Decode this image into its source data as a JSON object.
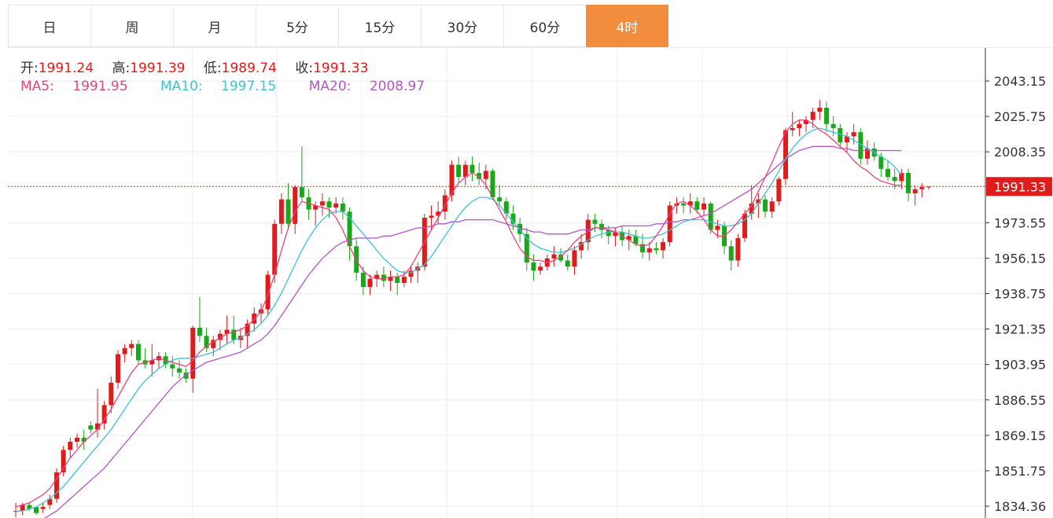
{
  "tabs": [
    {
      "label": "日",
      "active": false
    },
    {
      "label": "周",
      "active": false
    },
    {
      "label": "月",
      "active": false
    },
    {
      "label": "5分",
      "active": false
    },
    {
      "label": "15分",
      "active": false
    },
    {
      "label": "30分",
      "active": false
    },
    {
      "label": "60分",
      "active": false
    },
    {
      "label": "4时",
      "active": true
    }
  ],
  "colors": {
    "up": "#e01b1b",
    "down": "#1aa81a",
    "ma5": "#e8457d",
    "ma10": "#3cc3d4",
    "ma20": "#b455c8",
    "accent": "#f28d3e"
  },
  "info": {
    "open_label": "开:",
    "open": "1991.24",
    "high_label": "高:",
    "high": "1991.39",
    "low_label": "低:",
    "low": "1989.74",
    "close_label": "收:",
    "close": "1991.33",
    "ma5_label": "MA5:",
    "ma5": "1991.95",
    "ma10_label": "MA10:",
    "ma10": "1997.15",
    "ma20_label": "MA20:",
    "ma20": "2008.97"
  },
  "chart_data": {
    "type": "candlestick",
    "ylim": [
      1830,
      2062
    ],
    "y_ticks": [
      "2043.15",
      "2025.75",
      "2008.35",
      "1991.33",
      "1973.55",
      "1956.15",
      "1938.75",
      "1921.35",
      "1903.95",
      "1886.55",
      "1869.15",
      "1851.75",
      "1834.36"
    ],
    "current_price": "1991.33",
    "candles": [
      [
        1832,
        1836,
        1829,
        1832
      ],
      [
        1832,
        1836,
        1830,
        1835
      ],
      [
        1835,
        1836,
        1832,
        1833
      ],
      [
        1834,
        1834,
        1830,
        1831
      ],
      [
        1833,
        1836,
        1831,
        1834
      ],
      [
        1835,
        1840,
        1833,
        1838
      ],
      [
        1838,
        1853,
        1836,
        1851
      ],
      [
        1851,
        1864,
        1849,
        1862
      ],
      [
        1862,
        1868,
        1858,
        1866
      ],
      [
        1866,
        1870,
        1863,
        1868
      ],
      [
        1868,
        1872,
        1862,
        1866
      ],
      [
        1874,
        1876,
        1870,
        1872
      ],
      [
        1872,
        1892,
        1868,
        1875
      ],
      [
        1875,
        1886,
        1872,
        1884
      ],
      [
        1884,
        1898,
        1880,
        1895
      ],
      [
        1895,
        1911,
        1892,
        1909
      ],
      [
        1909,
        1914,
        1905,
        1912
      ],
      [
        1912,
        1916,
        1908,
        1914
      ],
      [
        1914,
        1916,
        1904,
        1906
      ],
      [
        1906,
        1912,
        1902,
        1904
      ],
      [
        1904,
        1914,
        1898,
        1906
      ],
      [
        1906,
        1910,
        1902,
        1908
      ],
      [
        1908,
        1910,
        1902,
        1904
      ],
      [
        1904,
        1908,
        1898,
        1902
      ],
      [
        1902,
        1906,
        1897,
        1900
      ],
      [
        1900,
        1902,
        1895,
        1897
      ],
      [
        1897,
        1923,
        1890,
        1922
      ],
      [
        1922,
        1937,
        1915,
        1918
      ],
      [
        1918,
        1922,
        1910,
        1912
      ],
      [
        1912,
        1918,
        1908,
        1916
      ],
      [
        1916,
        1921,
        1911,
        1919
      ],
      [
        1919,
        1928,
        1914,
        1921
      ],
      [
        1921,
        1928,
        1914,
        1916
      ],
      [
        1916,
        1922,
        1912,
        1918
      ],
      [
        1918,
        1926,
        1912,
        1924
      ],
      [
        1924,
        1932,
        1920,
        1929
      ],
      [
        1929,
        1934,
        1924,
        1931
      ],
      [
        1931,
        1950,
        1928,
        1948
      ],
      [
        1948,
        1975,
        1944,
        1973
      ],
      [
        1973,
        1988,
        1968,
        1985
      ],
      [
        1985,
        1993,
        1970,
        1973
      ],
      [
        1973,
        1992,
        1968,
        1991
      ],
      [
        1991,
        2011,
        1984,
        1986
      ],
      [
        1986,
        1990,
        1975,
        1980
      ],
      [
        1980,
        1984,
        1972,
        1982
      ],
      [
        1982,
        1988,
        1977,
        1984
      ],
      [
        1984,
        1986,
        1976,
        1981
      ],
      [
        1981,
        1986,
        1978,
        1983
      ],
      [
        1983,
        1986,
        1975,
        1979
      ],
      [
        1979,
        1981,
        1955,
        1962
      ],
      [
        1962,
        1966,
        1945,
        1949
      ],
      [
        1949,
        1952,
        1938,
        1942
      ],
      [
        1942,
        1948,
        1938,
        1946
      ],
      [
        1946,
        1950,
        1942,
        1948
      ],
      [
        1948,
        1952,
        1942,
        1945
      ],
      [
        1945,
        1950,
        1940,
        1947
      ],
      [
        1947,
        1949,
        1938,
        1944
      ],
      [
        1944,
        1950,
        1942,
        1947
      ],
      [
        1947,
        1952,
        1944,
        1950
      ],
      [
        1950,
        1954,
        1944,
        1952
      ],
      [
        1952,
        1978,
        1950,
        1976
      ],
      [
        1976,
        1982,
        1970,
        1977
      ],
      [
        1977,
        1984,
        1973,
        1979
      ],
      [
        1979,
        1990,
        1975,
        1987
      ],
      [
        1987,
        2004,
        1984,
        2002
      ],
      [
        2002,
        2006,
        1993,
        1996
      ],
      [
        1996,
        2004,
        1992,
        2002
      ],
      [
        2002,
        2006,
        1994,
        1998
      ],
      [
        1998,
        2003,
        1992,
        1995
      ],
      [
        1995,
        2002,
        1990,
        1999
      ],
      [
        1999,
        2000,
        1985,
        1986
      ],
      [
        1986,
        1992,
        1982,
        1984
      ],
      [
        1984,
        1986,
        1975,
        1978
      ],
      [
        1978,
        1982,
        1970,
        1973
      ],
      [
        1973,
        1976,
        1964,
        1968
      ],
      [
        1968,
        1971,
        1950,
        1954
      ],
      [
        1954,
        1958,
        1945,
        1950
      ],
      [
        1950,
        1954,
        1948,
        1952
      ],
      [
        1952,
        1958,
        1950,
        1956
      ],
      [
        1956,
        1962,
        1952,
        1958
      ],
      [
        1958,
        1961,
        1954,
        1955
      ],
      [
        1955,
        1958,
        1950,
        1952
      ],
      [
        1952,
        1962,
        1948,
        1960
      ],
      [
        1960,
        1968,
        1956,
        1964
      ],
      [
        1964,
        1978,
        1960,
        1975
      ],
      [
        1975,
        1978,
        1969,
        1973
      ],
      [
        1973,
        1975,
        1966,
        1970
      ],
      [
        1970,
        1972,
        1963,
        1967
      ],
      [
        1967,
        1971,
        1962,
        1969
      ],
      [
        1969,
        1972,
        1962,
        1965
      ],
      [
        1965,
        1970,
        1960,
        1967
      ],
      [
        1967,
        1970,
        1962,
        1963
      ],
      [
        1963,
        1968,
        1956,
        1959
      ],
      [
        1959,
        1964,
        1955,
        1961
      ],
      [
        1961,
        1964,
        1958,
        1960
      ],
      [
        1960,
        1966,
        1956,
        1964
      ],
      [
        1964,
        1984,
        1962,
        1982
      ],
      [
        1982,
        1986,
        1978,
        1983
      ],
      [
        1983,
        1986,
        1978,
        1982
      ],
      [
        1982,
        1988,
        1978,
        1984
      ],
      [
        1984,
        1986,
        1978,
        1980
      ],
      [
        1980,
        1986,
        1977,
        1983
      ],
      [
        1983,
        1984,
        1968,
        1970
      ],
      [
        1970,
        1975,
        1966,
        1972
      ],
      [
        1972,
        1974,
        1958,
        1962
      ],
      [
        1962,
        1965,
        1950,
        1955
      ],
      [
        1955,
        1968,
        1952,
        1966
      ],
      [
        1966,
        1980,
        1964,
        1978
      ],
      [
        1978,
        1992,
        1975,
        1983
      ],
      [
        1983,
        1988,
        1976,
        1985
      ],
      [
        1985,
        1987,
        1976,
        1979
      ],
      [
        1979,
        1986,
        1976,
        1984
      ],
      [
        1984,
        1996,
        1982,
        1995
      ],
      [
        1995,
        2020,
        1992,
        2019
      ],
      [
        2019,
        2028,
        2016,
        2020
      ],
      [
        2020,
        2024,
        2016,
        2022
      ],
      [
        2022,
        2026,
        2018,
        2024
      ],
      [
        2024,
        2030,
        2020,
        2028
      ],
      [
        2028,
        2034,
        2024,
        2030
      ],
      [
        2030,
        2033,
        2018,
        2022
      ],
      [
        2022,
        2026,
        2016,
        2020
      ],
      [
        2020,
        2022,
        2010,
        2013
      ],
      [
        2013,
        2018,
        2008,
        2016
      ],
      [
        2016,
        2022,
        2012,
        2018
      ],
      [
        2018,
        2020,
        2002,
        2005
      ],
      [
        2005,
        2014,
        2002,
        2010
      ],
      [
        2010,
        2013,
        2004,
        2006
      ],
      [
        2006,
        2008,
        1996,
        2000
      ],
      [
        2000,
        2004,
        1994,
        1996
      ],
      [
        1996,
        2000,
        1990,
        1994
      ],
      [
        1994,
        2000,
        1990,
        1998
      ],
      [
        1998,
        2000,
        1984,
        1988
      ],
      [
        1988,
        1992,
        1982,
        1990
      ],
      [
        1990,
        1993,
        1986,
        1991
      ],
      [
        1991.24,
        1991.39,
        1989.74,
        1991.33
      ]
    ],
    "ma5": [
      1834,
      1835,
      1836,
      1838,
      1840,
      1843,
      1848,
      1853,
      1858,
      1862,
      1866,
      1869,
      1872,
      1877,
      1882,
      1888,
      1894,
      1900,
      1904,
      1905,
      1906,
      1907,
      1906,
      1905,
      1904,
      1903,
      1906,
      1910,
      1913,
      1915,
      1917,
      1919,
      1920,
      1921,
      1923,
      1926,
      1930,
      1938,
      1948,
      1960,
      1971,
      1979,
      1984,
      1983,
      1982,
      1981,
      1980,
      1976,
      1970,
      1962,
      1955,
      1950,
      1947,
      1946,
      1946,
      1947,
      1947,
      1948,
      1952,
      1958,
      1964,
      1970,
      1976,
      1982,
      1988,
      1993,
      1996,
      1998,
      1996,
      1992,
      1986,
      1980,
      1974,
      1967,
      1961,
      1957,
      1955,
      1955,
      1954,
      1955,
      1957,
      1960,
      1964,
      1967,
      1969,
      1971,
      1971,
      1970,
      1969,
      1967,
      1965,
      1963,
      1962,
      1963,
      1967,
      1972,
      1978,
      1983,
      1984,
      1982,
      1979,
      1975,
      1970,
      1967,
      1967,
      1970,
      1974,
      1978,
      1982,
      1989,
      1996,
      2003,
      2011,
      2018,
      2022,
      2024,
      2024,
      2022,
      2019,
      2017,
      2014,
      2011,
      2008,
      2004,
      2001,
      1999,
      1996,
      1994,
      1993,
      1992,
      1991.95
    ],
    "ma10": [
      1832,
      1832,
      1833,
      1834,
      1836,
      1838,
      1841,
      1844,
      1848,
      1852,
      1856,
      1860,
      1864,
      1868,
      1872,
      1877,
      1882,
      1887,
      1892,
      1896,
      1899,
      1902,
      1904,
      1906,
      1907,
      1907,
      1907,
      1908,
      1909,
      1910,
      1912,
      1914,
      1916,
      1917,
      1919,
      1921,
      1924,
      1928,
      1933,
      1939,
      1946,
      1953,
      1960,
      1966,
      1971,
      1975,
      1978,
      1979,
      1979,
      1976,
      1972,
      1968,
      1964,
      1960,
      1956,
      1953,
      1950,
      1949,
      1949,
      1951,
      1953,
      1957,
      1962,
      1967,
      1972,
      1977,
      1981,
      1984,
      1986,
      1986,
      1985,
      1982,
      1978,
      1974,
      1970,
      1966,
      1963,
      1961,
      1960,
      1959,
      1959,
      1960,
      1961,
      1963,
      1965,
      1967,
      1968,
      1969,
      1969,
      1969,
      1968,
      1967,
      1966,
      1966,
      1967,
      1968,
      1970,
      1972,
      1974,
      1975,
      1975,
      1975,
      1974,
      1973,
      1972,
      1972,
      1973,
      1975,
      1978,
      1983,
      1988,
      1993,
      1999,
      2005,
      2010,
      2014,
      2017,
      2019,
      2020,
      2019,
      2018,
      2017,
      2016,
      2014,
      2012,
      2010,
      2008,
      2006,
      2004,
      2001,
      1997.15
    ],
    "ma20": [
      1822,
      1823,
      1824,
      1826,
      1828,
      1830,
      1832,
      1835,
      1838,
      1841,
      1844,
      1847,
      1850,
      1853,
      1857,
      1861,
      1865,
      1869,
      1873,
      1877,
      1881,
      1885,
      1889,
      1893,
      1896,
      1899,
      1901,
      1903,
      1905,
      1906,
      1907,
      1908,
      1909,
      1910,
      1912,
      1914,
      1916,
      1919,
      1923,
      1928,
      1933,
      1938,
      1943,
      1948,
      1952,
      1956,
      1959,
      1962,
      1964,
      1965,
      1966,
      1966,
      1966,
      1966,
      1967,
      1967,
      1968,
      1969,
      1970,
      1971,
      1971,
      1972,
      1973,
      1973,
      1974,
      1974,
      1975,
      1975,
      1975,
      1975,
      1975,
      1974,
      1973,
      1972,
      1971,
      1970,
      1969,
      1969,
      1968,
      1968,
      1968,
      1968,
      1969,
      1970,
      1970,
      1971,
      1971,
      1971,
      1971,
      1972,
      1972,
      1972,
      1972,
      1972,
      1973,
      1973,
      1974,
      1974,
      1975,
      1975,
      1976,
      1977,
      1978,
      1980,
      1982,
      1984,
      1986,
      1988,
      1990,
      1993,
      1996,
      1999,
      2002,
      2005,
      2007,
      2009,
      2010,
      2011,
      2011,
      2011,
      2011,
      2010,
      2010,
      2009,
      2009,
      2009,
      2009,
      2009,
      2009,
      2009,
      2008.97
    ]
  }
}
